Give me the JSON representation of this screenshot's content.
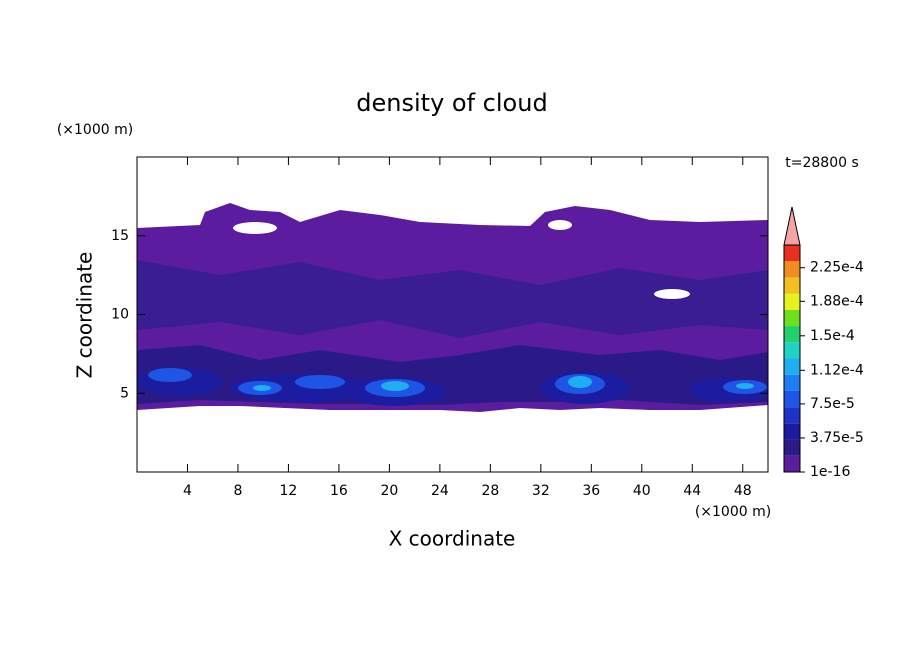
{
  "chart_data": {
    "type": "contour",
    "title": "density of cloud",
    "x_label": "X coordinate",
    "y_label": "Z coordinate",
    "x_unit": "(×1000 m)",
    "y_unit": "(×1000 m)",
    "annotation": "t=28800 s",
    "xlim": [
      0,
      50
    ],
    "ylim": [
      0,
      20
    ],
    "xticks": [
      4,
      8,
      12,
      16,
      20,
      24,
      28,
      32,
      36,
      40,
      44,
      48
    ],
    "yticks": [
      5,
      10,
      15
    ],
    "colorbar": {
      "lim": [
        1e-16,
        0.00025
      ],
      "colors": [
        "#5b1ca0",
        "#2e1a86",
        "#1c1ca0",
        "#1e34c8",
        "#1f55e4",
        "#1f7cf2",
        "#20aef0",
        "#20d4c4",
        "#22d070",
        "#6ee020",
        "#e8f020",
        "#f0c020",
        "#f08c20",
        "#e83020"
      ],
      "extend_color": "#f4a4a4",
      "ticks": [
        1e-16,
        {
          "value": 3.75e-05,
          "label": "3.75e-5"
        },
        {
          "value": 7.5e-05,
          "label": "7.5e-5"
        },
        {
          "value": 0.000112,
          "label": "1.12e-4"
        },
        {
          "value": 0.00015,
          "label": "1.5e-4"
        },
        {
          "value": 0.000188,
          "label": "1.88e-4"
        },
        {
          "value": 0.000225,
          "label": "2.25e-4"
        }
      ]
    }
  }
}
